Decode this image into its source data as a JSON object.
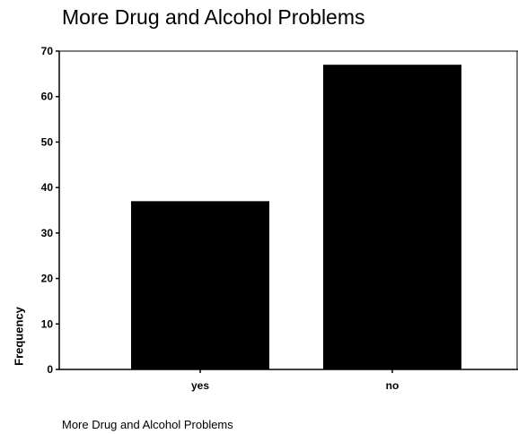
{
  "chart_data": {
    "type": "bar",
    "title": "More Drug and Alcohol Problems",
    "xlabel": "More Drug and Alcohol Problems",
    "ylabel": "Frequency",
    "categories": [
      "yes",
      "no"
    ],
    "values": [
      37,
      67
    ],
    "ylim": [
      0,
      70
    ],
    "yticks": [
      0,
      10,
      20,
      30,
      40,
      50,
      60,
      70
    ],
    "grid": false,
    "legend": "none",
    "bar_color": "#000000"
  }
}
